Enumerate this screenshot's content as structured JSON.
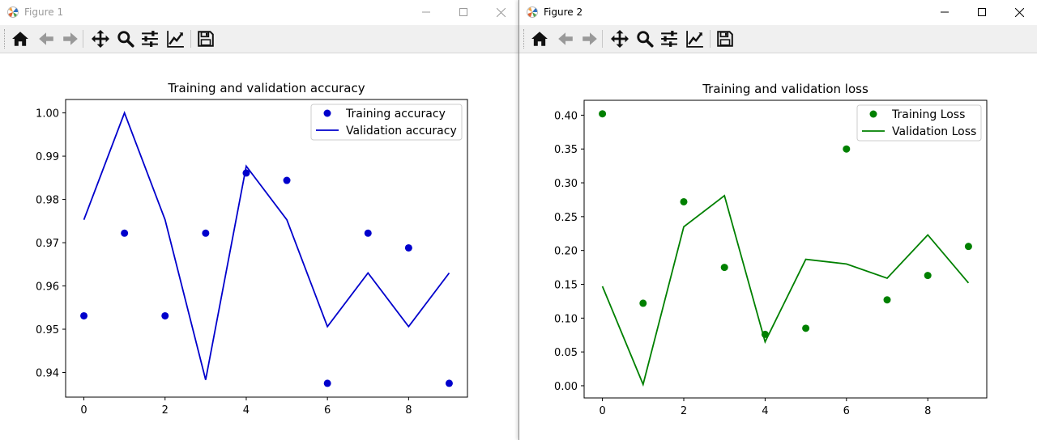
{
  "windows": [
    {
      "title": "Figure 1",
      "active": false,
      "chart_data": {
        "type": "scatter+line",
        "title": "Training and validation accuracy",
        "xlabel": "",
        "ylabel": "",
        "xlim": [
          -0.45,
          9.45
        ],
        "ylim": [
          0.9343,
          1.0031
        ],
        "xticks": [
          "0",
          "2",
          "4",
          "6",
          "8"
        ],
        "yticks": [
          "0.94",
          "0.95",
          "0.96",
          "0.97",
          "0.98",
          "0.99",
          "1.00"
        ],
        "legend_position": "top-right",
        "series": [
          {
            "name": "Training accuracy",
            "style": "dots",
            "color": "#0000cc",
            "x": [
              0,
              1,
              2,
              3,
              4,
              5,
              6,
              7,
              8,
              9
            ],
            "y": [
              0.9531,
              0.9722,
              0.9531,
              0.9722,
              0.9861,
              0.9844,
              0.9375,
              0.9722,
              0.9688,
              0.9375
            ]
          },
          {
            "name": "Validation accuracy",
            "style": "line",
            "color": "#0000cc",
            "x": [
              0,
              1,
              2,
              3,
              4,
              5,
              6,
              7,
              8,
              9
            ],
            "y": [
              0.9753,
              1.0,
              0.9753,
              0.9383,
              0.9877,
              0.9753,
              0.9506,
              0.963,
              0.9506,
              0.963
            ]
          }
        ]
      }
    },
    {
      "title": "Figure 2",
      "active": true,
      "chart_data": {
        "type": "scatter+line",
        "title": "Training and validation loss",
        "xlabel": "",
        "ylabel": "",
        "xlim": [
          -0.45,
          9.45
        ],
        "ylim": [
          -0.018,
          0.422
        ],
        "xticks": [
          "0",
          "2",
          "4",
          "6",
          "8"
        ],
        "yticks": [
          "0.00",
          "0.05",
          "0.10",
          "0.15",
          "0.20",
          "0.25",
          "0.30",
          "0.35",
          "0.40"
        ],
        "legend_position": "top-right",
        "series": [
          {
            "name": "Training Loss",
            "style": "dots",
            "color": "#008000",
            "x": [
              0,
              1,
              2,
              3,
              4,
              5,
              6,
              7,
              8,
              9
            ],
            "y": [
              0.402,
              0.122,
              0.272,
              0.175,
              0.076,
              0.085,
              0.35,
              0.127,
              0.163,
              0.206
            ]
          },
          {
            "name": "Validation Loss",
            "style": "line",
            "color": "#008000",
            "x": [
              0,
              1,
              2,
              3,
              4,
              5,
              6,
              7,
              8,
              9
            ],
            "y": [
              0.147,
              0.002,
              0.235,
              0.281,
              0.065,
              0.187,
              0.18,
              0.159,
              0.223,
              0.152
            ]
          }
        ]
      }
    }
  ],
  "toolbar": {
    "buttons": [
      {
        "name": "home-button",
        "icon": "home-icon"
      },
      {
        "name": "back-button",
        "icon": "arrow-left-icon"
      },
      {
        "name": "forward-button",
        "icon": "arrow-right-icon"
      },
      {
        "name": "pan-button",
        "icon": "move-icon"
      },
      {
        "name": "zoom-button",
        "icon": "magnifier-icon"
      },
      {
        "name": "configure-subplots-button",
        "icon": "sliders-icon"
      },
      {
        "name": "edit-axis-button",
        "icon": "line-chart-icon"
      },
      {
        "name": "save-button",
        "icon": "floppy-disk-icon"
      }
    ]
  },
  "colors": {
    "accuracy": "#0000cc",
    "loss": "#008000",
    "toolbar_bg": "#f0f0f0"
  }
}
